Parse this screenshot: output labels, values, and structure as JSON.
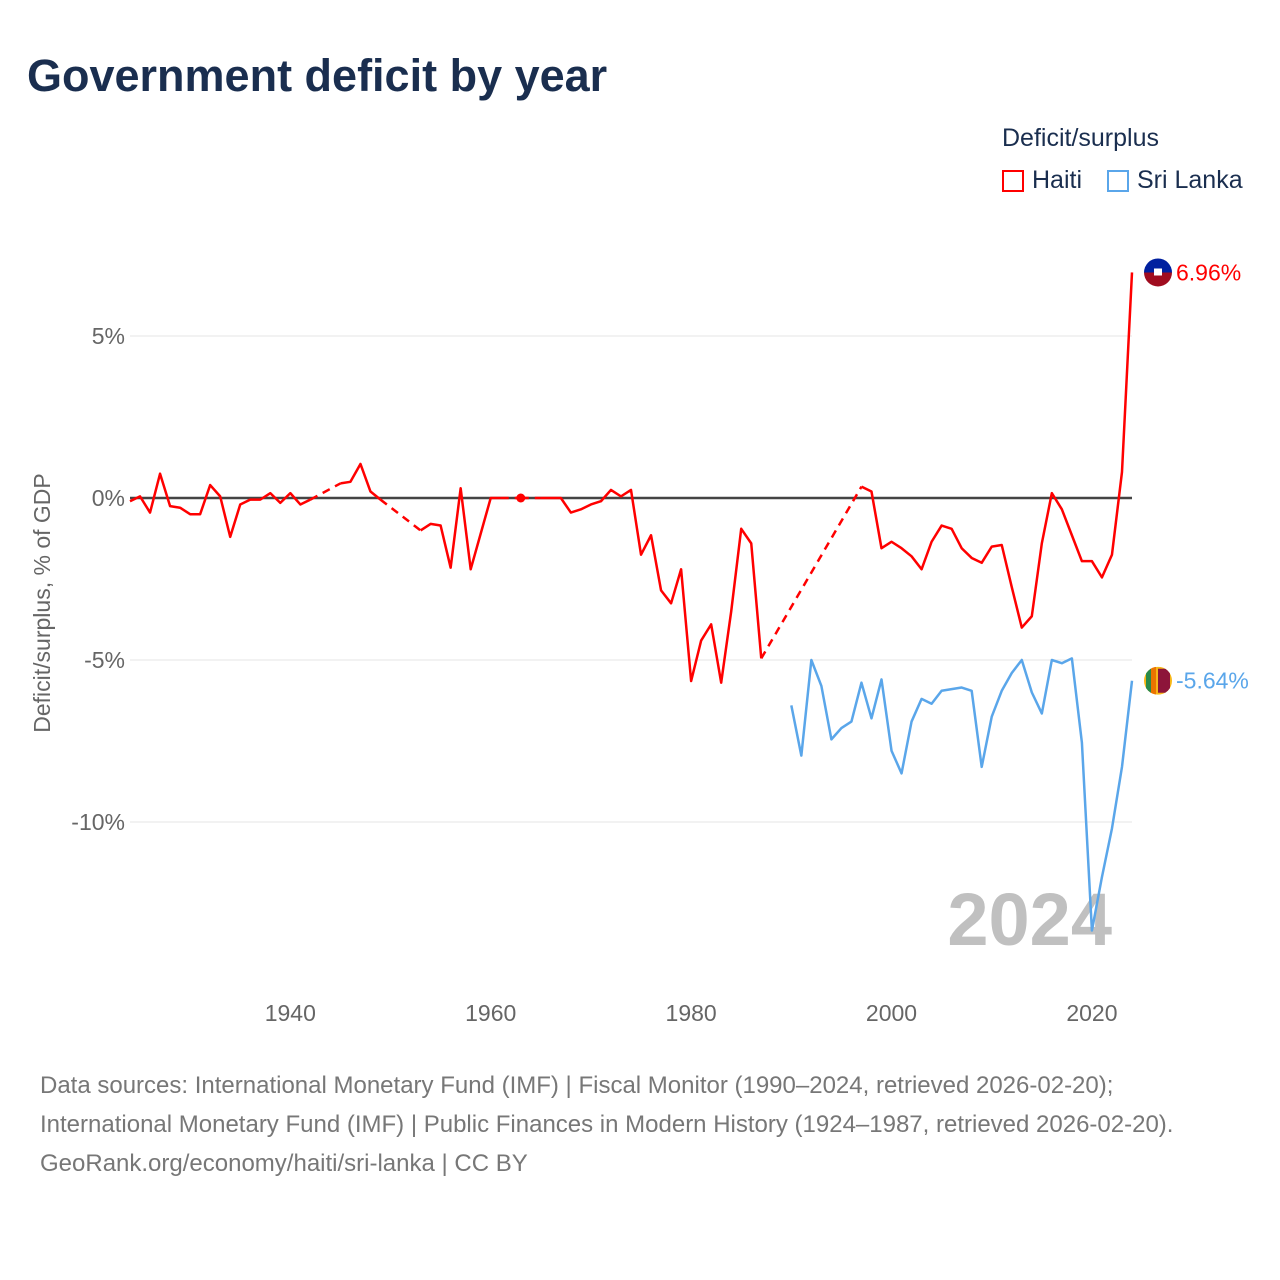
{
  "title": "Government deficit by year",
  "legend": {
    "title": "Deficit/surplus",
    "items": [
      {
        "name": "Haiti",
        "color": "#ff0000"
      },
      {
        "name": "Sri Lanka",
        "color": "#5aa6ea"
      }
    ]
  },
  "footer": {
    "sources": "Data sources: International Monetary Fund (IMF) | Fiscal Monitor (1990–2024, retrieved 2026-02-20); International Monetary Fund (IMF) | Public Finances in Modern History (1924–1987, retrieved 2026-02-20).",
    "credit": "GeoRank.org/economy/haiti/sri-lanka | CC BY"
  },
  "chart_data": {
    "type": "line",
    "title": "Government deficit by year",
    "xlabel": "",
    "ylabel": "Deficit/surplus, % of GDP",
    "xlim": [
      1924,
      2024
    ],
    "ylim": [
      -14.5,
      8
    ],
    "xticks": [
      {
        "v": 1940,
        "label": "1940"
      },
      {
        "v": 1960,
        "label": "1960"
      },
      {
        "v": 1980,
        "label": "1980"
      },
      {
        "v": 2000,
        "label": "2000"
      },
      {
        "v": 2020,
        "label": "2020"
      }
    ],
    "yticks": [
      {
        "v": 5,
        "label": "5%"
      },
      {
        "v": 0,
        "label": "0%"
      },
      {
        "v": -5,
        "label": "-5%"
      },
      {
        "v": -10,
        "label": "-10%"
      }
    ],
    "year_watermark": "2024",
    "series": [
      {
        "name": "Haiti",
        "color": "#ff0000",
        "end_label": "6.96%",
        "points": [
          [
            1924,
            -0.1
          ],
          [
            1925,
            0.05
          ],
          [
            1926,
            -0.45
          ],
          [
            1927,
            0.75
          ],
          [
            1928,
            -0.25
          ],
          [
            1929,
            -0.3
          ],
          [
            1930,
            -0.5
          ],
          [
            1931,
            -0.5
          ],
          [
            1932,
            0.4
          ],
          [
            1933,
            0.05
          ],
          [
            1934,
            -1.2
          ],
          [
            1935,
            -0.2
          ],
          [
            1936,
            -0.05
          ],
          [
            1937,
            -0.05
          ],
          [
            1938,
            0.15
          ],
          [
            1939,
            -0.15
          ],
          [
            1940,
            0.15
          ],
          [
            1941,
            -0.2
          ],
          [
            1942,
            -0.05
          ],
          [
            1945,
            0.45
          ],
          [
            1946,
            0.5
          ],
          [
            1947,
            1.05
          ],
          [
            1948,
            0.2
          ],
          [
            1949,
            -0.05
          ],
          [
            1953,
            -1.0
          ],
          [
            1954,
            -0.8
          ],
          [
            1955,
            -0.85
          ],
          [
            1956,
            -2.15
          ],
          [
            1957,
            0.3
          ],
          [
            1958,
            -2.2
          ],
          [
            1959,
            -1.1
          ],
          [
            1960,
            0
          ],
          [
            1961,
            0
          ],
          [
            1963,
            0
          ],
          [
            1965,
            0
          ],
          [
            1966,
            0
          ],
          [
            1967,
            0
          ],
          [
            1968,
            -0.45
          ],
          [
            1969,
            -0.35
          ],
          [
            1970,
            -0.2
          ],
          [
            1971,
            -0.1
          ],
          [
            1972,
            0.25
          ],
          [
            1973,
            0.05
          ],
          [
            1974,
            0.25
          ],
          [
            1975,
            -1.75
          ],
          [
            1976,
            -1.15
          ],
          [
            1977,
            -2.85
          ],
          [
            1978,
            -3.25
          ],
          [
            1979,
            -2.2
          ],
          [
            1980,
            -5.65
          ],
          [
            1981,
            -4.4
          ],
          [
            1982,
            -3.9
          ],
          [
            1983,
            -5.7
          ],
          [
            1984,
            -3.5
          ],
          [
            1985,
            -0.95
          ],
          [
            1986,
            -1.4
          ],
          [
            1987,
            -4.95
          ],
          [
            1997,
            0.35
          ],
          [
            1998,
            0.2
          ],
          [
            1999,
            -1.55
          ],
          [
            2000,
            -1.35
          ],
          [
            2001,
            -1.55
          ],
          [
            2002,
            -1.8
          ],
          [
            2003,
            -2.2
          ],
          [
            2004,
            -1.35
          ],
          [
            2005,
            -0.85
          ],
          [
            2006,
            -0.95
          ],
          [
            2007,
            -1.55
          ],
          [
            2008,
            -1.85
          ],
          [
            2009,
            -2.0
          ],
          [
            2010,
            -1.5
          ],
          [
            2011,
            -1.45
          ],
          [
            2012,
            -2.75
          ],
          [
            2013,
            -4.0
          ],
          [
            2014,
            -3.65
          ],
          [
            2015,
            -1.4
          ],
          [
            2016,
            0.15
          ],
          [
            2017,
            -0.35
          ],
          [
            2018,
            -1.15
          ],
          [
            2019,
            -1.95
          ],
          [
            2020,
            -1.95
          ],
          [
            2021,
            -2.45
          ],
          [
            2022,
            -1.75
          ],
          [
            2023,
            0.8
          ],
          [
            2024,
            6.96
          ]
        ]
      },
      {
        "name": "Sri Lanka",
        "color": "#5aa6ea",
        "end_label": "-5.64%",
        "points": [
          [
            1990,
            -6.4
          ],
          [
            1991,
            -7.95
          ],
          [
            1992,
            -5.0
          ],
          [
            1993,
            -5.8
          ],
          [
            1994,
            -7.45
          ],
          [
            1995,
            -7.1
          ],
          [
            1996,
            -6.9
          ],
          [
            1997,
            -5.7
          ],
          [
            1998,
            -6.8
          ],
          [
            1999,
            -5.6
          ],
          [
            2000,
            -7.8
          ],
          [
            2001,
            -8.5
          ],
          [
            2002,
            -6.9
          ],
          [
            2003,
            -6.2
          ],
          [
            2004,
            -6.35
          ],
          [
            2005,
            -5.95
          ],
          [
            2006,
            -5.9
          ],
          [
            2007,
            -5.85
          ],
          [
            2008,
            -5.95
          ],
          [
            2009,
            -8.3
          ],
          [
            2010,
            -6.75
          ],
          [
            2011,
            -5.95
          ],
          [
            2012,
            -5.4
          ],
          [
            2013,
            -5.0
          ],
          [
            2014,
            -6.0
          ],
          [
            2015,
            -6.65
          ],
          [
            2016,
            -5.0
          ],
          [
            2017,
            -5.1
          ],
          [
            2018,
            -4.95
          ],
          [
            2019,
            -7.55
          ],
          [
            2020,
            -13.35
          ],
          [
            2021,
            -11.7
          ],
          [
            2022,
            -10.2
          ],
          [
            2023,
            -8.3
          ],
          [
            2024,
            -5.64
          ]
        ]
      }
    ]
  }
}
